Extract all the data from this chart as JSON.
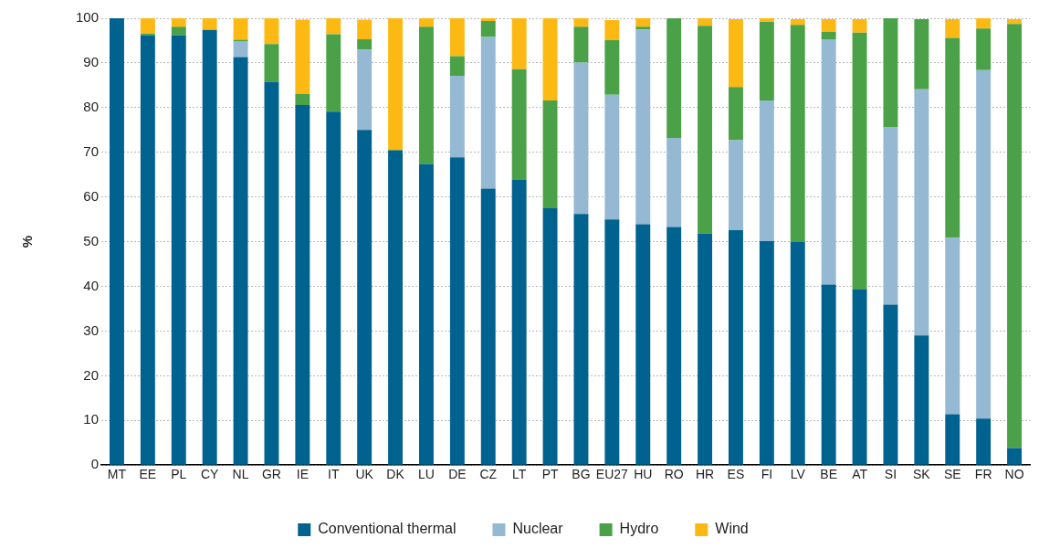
{
  "chart_data": {
    "type": "bar",
    "stacked": true,
    "ylabel": "%",
    "categories": [
      "MT",
      "EE",
      "PL",
      "CY",
      "NL",
      "GR",
      "IE",
      "IT",
      "UK",
      "DK",
      "LU",
      "DE",
      "CZ",
      "LT",
      "PT",
      "BG",
      "EU27",
      "HU",
      "RO",
      "HR",
      "ES",
      "FI",
      "LV",
      "BE",
      "AT",
      "SI",
      "SK",
      "SE",
      "FR",
      "NO"
    ],
    "series": [
      {
        "name": "Conventional thermal",
        "color": "#00628f",
        "values": [
          100,
          96.2,
          96.2,
          97.4,
          91.3,
          85.8,
          80.6,
          79.1,
          75.0,
          70.4,
          67.4,
          68.9,
          61.9,
          63.8,
          57.5,
          56.2,
          55.0,
          53.9,
          53.3,
          51.8,
          52.6,
          50.1,
          49.9,
          40.4,
          39.3,
          35.9,
          29.0,
          11.4,
          10.4,
          3.8
        ]
      },
      {
        "name": "Nuclear",
        "color": "#95b8d3",
        "values": [
          0,
          0,
          0,
          0,
          3.6,
          0,
          0,
          0,
          18.0,
          0,
          0,
          18.2,
          33.9,
          0,
          0,
          33.9,
          27.9,
          43.6,
          19.9,
          0,
          20.1,
          31.5,
          0,
          54.9,
          0,
          39.8,
          55.1,
          39.5,
          78.0,
          0
        ]
      },
      {
        "name": "Hydro",
        "color": "#4ba147",
        "values": [
          0,
          0.4,
          1.9,
          0,
          0.3,
          8.4,
          2.5,
          17.3,
          2.3,
          0.2,
          30.7,
          4.4,
          3.6,
          24.8,
          24.1,
          8.0,
          12.2,
          0.6,
          26.8,
          46.5,
          11.9,
          17.6,
          48.6,
          1.7,
          57.5,
          24.3,
          15.7,
          44.7,
          9.3,
          94.9
        ]
      },
      {
        "name": "Wind",
        "color": "#fdb913",
        "values": [
          0,
          3.4,
          1.9,
          2.6,
          4.8,
          5.8,
          16.6,
          3.6,
          4.4,
          29.4,
          1.9,
          8.5,
          0.6,
          11.4,
          18.4,
          1.9,
          4.5,
          1.9,
          0,
          1.7,
          15.2,
          0.8,
          1.3,
          2.8,
          3.0,
          0,
          0,
          4.2,
          2.3,
          1.1
        ]
      }
    ],
    "ylim": [
      0,
      100
    ],
    "yticks": [
      0,
      10,
      20,
      30,
      40,
      50,
      60,
      70,
      80,
      90,
      100
    ],
    "grid": "y",
    "legend": "bottom"
  }
}
